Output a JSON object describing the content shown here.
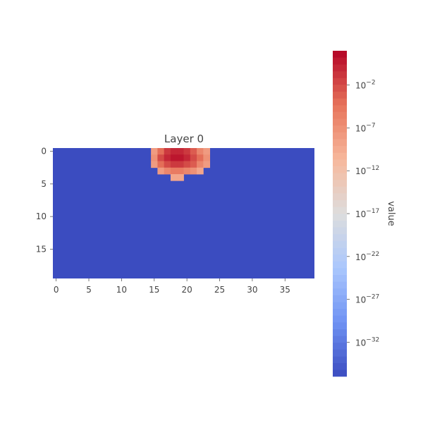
{
  "chart_data": {
    "type": "heatmap",
    "title": "Layer 0",
    "xlabel": "",
    "ylabel": "",
    "n_cols": 40,
    "n_rows": 20,
    "x_ticks": [
      0,
      5,
      10,
      15,
      20,
      25,
      30,
      35
    ],
    "y_ticks": [
      0,
      5,
      10,
      15
    ],
    "colormap": "coolwarm",
    "colormap_stops": [
      "#3b4cc0",
      "#6f92f3",
      "#aac7fd",
      "#dddddd",
      "#f7b89c",
      "#e7745b",
      "#b40426"
    ],
    "color_scale": "log",
    "vmin_exp": -36,
    "vmax_exp": 2,
    "background_value": 1e-36,
    "colorbar": {
      "label": "value",
      "tick_labels": [
        "10−2",
        "10−7",
        "10−12",
        "10−17",
        "10−22",
        "10−27",
        "10−32"
      ],
      "tick_exponents": [
        -2,
        -7,
        -12,
        -17,
        -22,
        -27,
        -32
      ],
      "placement": "right"
    },
    "cells": [
      {
        "row": 0,
        "col": 15,
        "value": 1e-08
      },
      {
        "row": 0,
        "col": 16,
        "value": 0.0001
      },
      {
        "row": 0,
        "col": 17,
        "value": 0.1
      },
      {
        "row": 0,
        "col": 18,
        "value": 1
      },
      {
        "row": 0,
        "col": 19,
        "value": 1
      },
      {
        "row": 0,
        "col": 20,
        "value": 0.1
      },
      {
        "row": 0,
        "col": 21,
        "value": 0.001
      },
      {
        "row": 0,
        "col": 22,
        "value": 1e-06
      },
      {
        "row": 0,
        "col": 23,
        "value": 1e-08
      },
      {
        "row": 1,
        "col": 15,
        "value": 1e-07
      },
      {
        "row": 1,
        "col": 16,
        "value": 0.01
      },
      {
        "row": 1,
        "col": 17,
        "value": 1
      },
      {
        "row": 1,
        "col": 18,
        "value": 10
      },
      {
        "row": 1,
        "col": 19,
        "value": 10
      },
      {
        "row": 1,
        "col": 20,
        "value": 1
      },
      {
        "row": 1,
        "col": 21,
        "value": 0.01
      },
      {
        "row": 1,
        "col": 22,
        "value": 0.0001
      },
      {
        "row": 1,
        "col": 23,
        "value": 1e-07
      },
      {
        "row": 2,
        "col": 15,
        "value": 1e-08
      },
      {
        "row": 2,
        "col": 16,
        "value": 0.0001
      },
      {
        "row": 2,
        "col": 17,
        "value": 0.01
      },
      {
        "row": 2,
        "col": 18,
        "value": 0.1
      },
      {
        "row": 2,
        "col": 19,
        "value": 0.1
      },
      {
        "row": 2,
        "col": 20,
        "value": 0.01
      },
      {
        "row": 2,
        "col": 21,
        "value": 0.001
      },
      {
        "row": 2,
        "col": 22,
        "value": 1e-06
      },
      {
        "row": 2,
        "col": 23,
        "value": 1e-08
      },
      {
        "row": 3,
        "col": 16,
        "value": 1e-08
      },
      {
        "row": 3,
        "col": 17,
        "value": 1e-06
      },
      {
        "row": 3,
        "col": 18,
        "value": 1e-05
      },
      {
        "row": 3,
        "col": 19,
        "value": 1e-05
      },
      {
        "row": 3,
        "col": 20,
        "value": 1e-06
      },
      {
        "row": 3,
        "col": 21,
        "value": 1e-07
      },
      {
        "row": 3,
        "col": 22,
        "value": 1e-09
      },
      {
        "row": 4,
        "col": 18,
        "value": 1e-09
      },
      {
        "row": 4,
        "col": 19,
        "value": 1e-09
      }
    ]
  }
}
